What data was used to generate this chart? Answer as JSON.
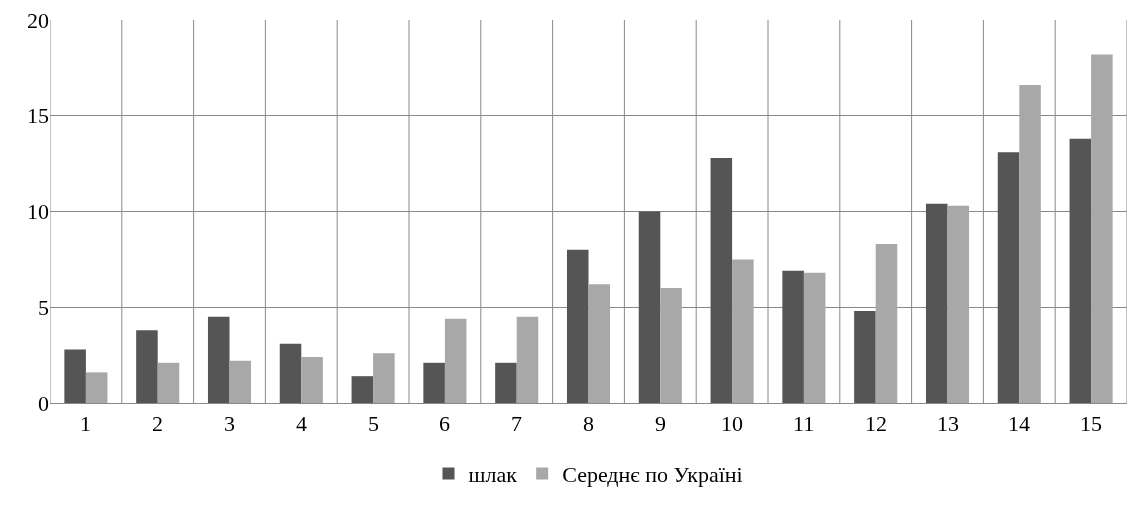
{
  "chart_data": {
    "type": "bar",
    "categories": [
      "1",
      "2",
      "3",
      "4",
      "5",
      "6",
      "7",
      "8",
      "9",
      "10",
      "11",
      "12",
      "13",
      "14",
      "15"
    ],
    "series": [
      {
        "name": "шлак",
        "color": "#555555",
        "values": [
          2.8,
          3.8,
          4.5,
          3.1,
          1.4,
          2.1,
          2.1,
          8.0,
          10.0,
          12.8,
          6.9,
          4.8,
          10.4,
          13.1,
          13.8
        ]
      },
      {
        "name": "Середнє по Україні",
        "color": "#a8a8a8",
        "values": [
          1.6,
          2.1,
          2.2,
          2.4,
          2.6,
          4.4,
          4.5,
          6.2,
          6.0,
          7.5,
          6.8,
          8.3,
          10.3,
          16.6,
          18.2
        ]
      }
    ],
    "ylim": [
      0,
      20
    ],
    "yticks": [
      0,
      5,
      10,
      15,
      20
    ],
    "grid": true,
    "legend": "bottom"
  }
}
